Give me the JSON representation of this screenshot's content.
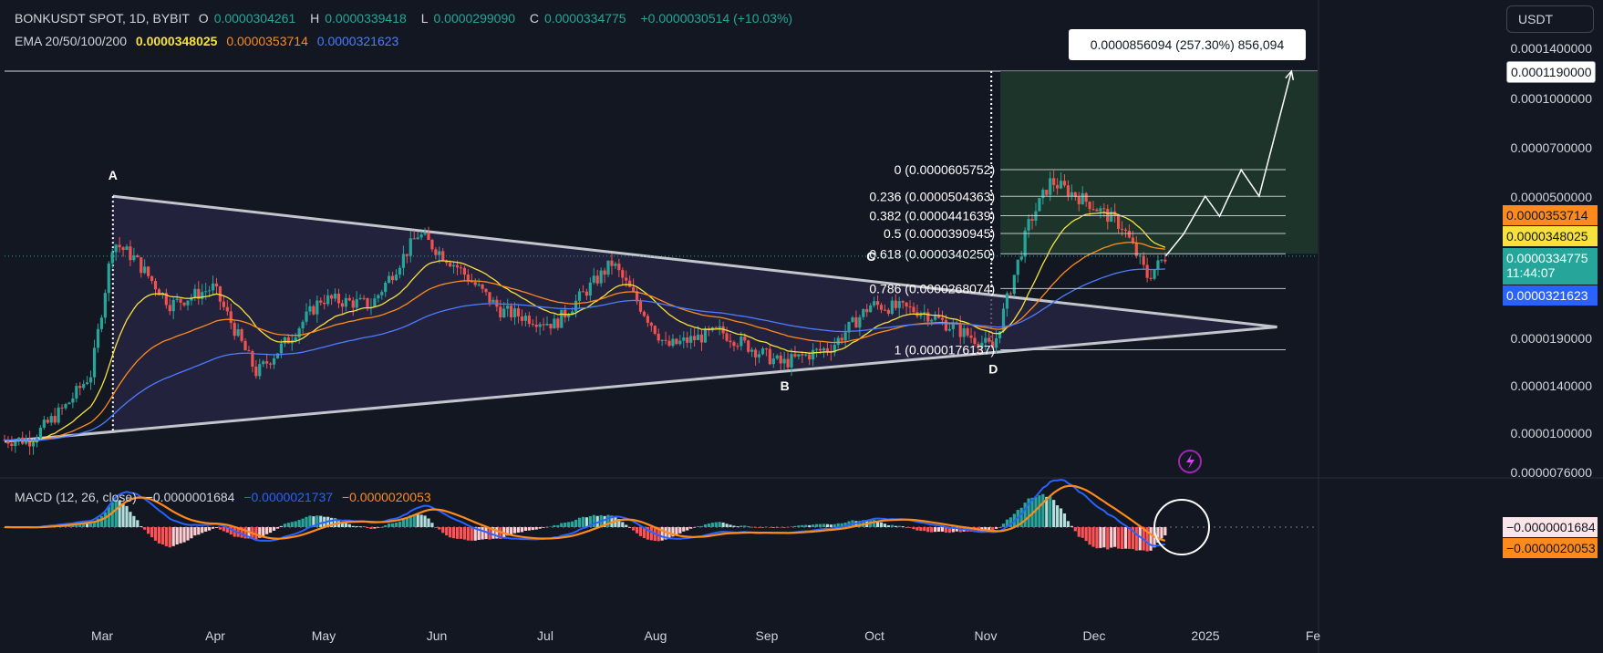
{
  "header": {
    "symbol": "BONKUSDT SPOT, 1D, BYBIT",
    "o_key": "O",
    "o_val": "0.0000304261",
    "h_key": "H",
    "h_val": "0.0000339418",
    "l_key": "L",
    "l_val": "0.0000299090",
    "c_key": "C",
    "c_val": "0.0000334775",
    "change": "+0.0000030514 (+10.03%)",
    "ema_label": "EMA 20/50/100/200",
    "ema20": "0.0000348025",
    "ema50": "0.0000353714",
    "ema100": "0.0000321623",
    "macd_label": "MACD (12, 26, close)",
    "macd_hist": "−0.0000001684",
    "macd_line": "−0.0000021737",
    "macd_signal": "−0.0000020053"
  },
  "currency": "USDT",
  "measure_label": "0.0000856094 (257.30%) 856,094",
  "colors": {
    "background": "#131722",
    "up": "#26a69a",
    "down": "#ef5350",
    "triangle_fill": "#2a2746",
    "target_zone": "#1f3a2c",
    "ema20": "#f7e13d",
    "ema50": "#ff8a1c",
    "ema100": "#4c7cff"
  },
  "price_axis": [
    "0.0001400000",
    "0.0001190000",
    "0.0001000000",
    "0.0000700000",
    "0.0000500000",
    "0.0000190000",
    "0.0000140000",
    "0.0000100000",
    "0.0000076000"
  ],
  "price_tags": {
    "target": "0.0001190000",
    "ema50": "0.0000353714",
    "ema20": "0.0000348025",
    "last": "0.0000334775",
    "countdown": "11:44:07",
    "ema100": "0.0000321623",
    "macd_hist": "−0.0000001684",
    "macd_signal": "−0.0000020053"
  },
  "x_axis": [
    "Mar",
    "Apr",
    "May",
    "Jun",
    "Jul",
    "Aug",
    "Sep",
    "Oct",
    "Nov",
    "Dec",
    "2025",
    "Fe"
  ],
  "fib_levels": [
    {
      "ratio": "0",
      "price": 6.05752e-05,
      "label": "0 (0.0000605752)"
    },
    {
      "ratio": "0.236",
      "price": 5.04363e-05,
      "label": "0.236 (0.0000504363)"
    },
    {
      "ratio": "0.382",
      "price": 4.41639e-05,
      "label": "0.382 (0.0000441639)"
    },
    {
      "ratio": "0.5",
      "price": 3.90945e-05,
      "label": "0.5 (0.0000390945)"
    },
    {
      "ratio": "0.618",
      "price": 3.4025e-05,
      "label": "0.618 (0.0000340250)"
    },
    {
      "ratio": "0.786",
      "price": 2.68074e-05,
      "label": "0.786 (0.0000268074)"
    },
    {
      "ratio": "1",
      "price": 1.76137e-05,
      "label": "1 (0.0000176137)"
    }
  ],
  "pattern_points": [
    "A",
    "B",
    "C",
    "D"
  ],
  "chart_data": {
    "type": "candlestick",
    "title": "BONKUSDT SPOT, 1D, BYBIT",
    "y_scale": "log",
    "ylim": [
      7.6e-06,
      0.00014
    ],
    "interval": "1D",
    "close_path": [
      {
        "date": "2024-02-10",
        "close": 9.5e-06
      },
      {
        "date": "2024-02-20",
        "close": 1.2e-05
      },
      {
        "date": "2024-02-27",
        "close": 1.5e-05
      },
      {
        "date": "2024-03-04",
        "close": 3.7e-05
      },
      {
        "date": "2024-03-10",
        "close": 3.3e-05
      },
      {
        "date": "2024-03-20",
        "close": 2.4e-05
      },
      {
        "date": "2024-04-01",
        "close": 2.7e-05
      },
      {
        "date": "2024-04-13",
        "close": 1.5e-05
      },
      {
        "date": "2024-04-22",
        "close": 1.9e-05
      },
      {
        "date": "2024-05-01",
        "close": 2.5e-05
      },
      {
        "date": "2024-05-15",
        "close": 2.4e-05
      },
      {
        "date": "2024-05-28",
        "close": 3.9e-05
      },
      {
        "date": "2024-06-08",
        "close": 3.1e-05
      },
      {
        "date": "2024-06-20",
        "close": 2.3e-05
      },
      {
        "date": "2024-07-05",
        "close": 2.1e-05
      },
      {
        "date": "2024-07-21",
        "close": 3.2e-05
      },
      {
        "date": "2024-08-05",
        "close": 1.8e-05
      },
      {
        "date": "2024-08-20",
        "close": 2e-05
      },
      {
        "date": "2024-09-06",
        "close": 1.6e-05
      },
      {
        "date": "2024-09-20",
        "close": 1.8e-05
      },
      {
        "date": "2024-10-01",
        "close": 2.4e-05
      },
      {
        "date": "2024-10-15",
        "close": 2.3e-05
      },
      {
        "date": "2024-11-04",
        "close": 1.78e-05
      },
      {
        "date": "2024-11-14",
        "close": 4.2e-05
      },
      {
        "date": "2024-11-20",
        "close": 5.6e-05
      },
      {
        "date": "2024-12-01",
        "close": 4.8e-05
      },
      {
        "date": "2024-12-10",
        "close": 4.1e-05
      },
      {
        "date": "2024-12-17",
        "close": 2.9e-05
      },
      {
        "date": "2024-12-22",
        "close": 3.34775e-05
      }
    ],
    "ema": {
      "ema20": 3.48025e-05,
      "ema50": 3.53714e-05,
      "ema100": 3.21623e-05
    },
    "triangle": {
      "upper": [
        {
          "date": "2024-03-04",
          "price": 5.05e-05
        },
        {
          "date": "2025-01-22",
          "price": 2.06e-05
        }
      ],
      "lower": [
        {
          "date": "2024-02-01",
          "price": 9.4e-06
        },
        {
          "date": "2025-01-22",
          "price": 2.06e-05
        }
      ]
    },
    "points": [
      {
        "name": "A",
        "date": "2024-03-04",
        "price": 5.05e-05
      },
      {
        "name": "B",
        "date": "2024-09-07",
        "price": 1.57e-05
      },
      {
        "name": "C",
        "date": "2024-10-01",
        "price": 2.9e-05
      },
      {
        "name": "D",
        "date": "2024-11-04",
        "price": 1.76e-05
      }
    ],
    "projection": [
      {
        "date": "2024-12-22",
        "price": 3.35e-05
      },
      {
        "date": "2024-12-27",
        "price": 3.9e-05
      },
      {
        "date": "2025-01-02",
        "price": 5.05e-05
      },
      {
        "date": "2025-01-06",
        "price": 4.4e-05
      },
      {
        "date": "2025-01-12",
        "price": 6.05e-05
      },
      {
        "date": "2025-01-17",
        "price": 5.05e-05
      },
      {
        "date": "2025-01-26",
        "price": 0.000119
      }
    ],
    "macd": {
      "label": "MACD (12, 26, close)",
      "hist": -1.684e-07,
      "macd": -2.1737e-06,
      "signal": -2.0053e-06
    }
  }
}
